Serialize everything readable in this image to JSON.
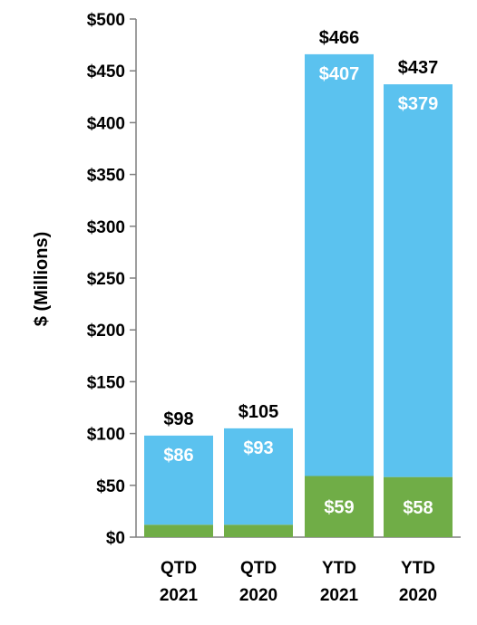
{
  "chart_data": {
    "type": "bar",
    "stacked": true,
    "ylabel": "$ (Millions)",
    "ylim": [
      0,
      500
    ],
    "yticks": [
      0,
      50,
      100,
      150,
      200,
      250,
      300,
      350,
      400,
      450,
      500
    ],
    "ytick_labels": [
      "$0",
      "$50",
      "$100",
      "$150",
      "$200",
      "$250",
      "$300",
      "$350",
      "$400",
      "$450",
      "$500"
    ],
    "grid": false,
    "legend": "none",
    "categories": [
      [
        "QTD",
        "2021"
      ],
      [
        "QTD",
        "2020"
      ],
      [
        "YTD",
        "2021"
      ],
      [
        "YTD",
        "2020"
      ]
    ],
    "series": [
      {
        "color": "#70ad47",
        "values": [
          12,
          12,
          59,
          58
        ],
        "labels": [
          "",
          "",
          "$59",
          "$58"
        ]
      },
      {
        "color": "#5bc2ef",
        "values": [
          86,
          93,
          407,
          379
        ],
        "labels": [
          "$86",
          "$93",
          "$407",
          "$379"
        ]
      }
    ],
    "totals": [
      98,
      105,
      466,
      437
    ],
    "total_labels": [
      "$98",
      "$105",
      "$466",
      "$437"
    ]
  }
}
